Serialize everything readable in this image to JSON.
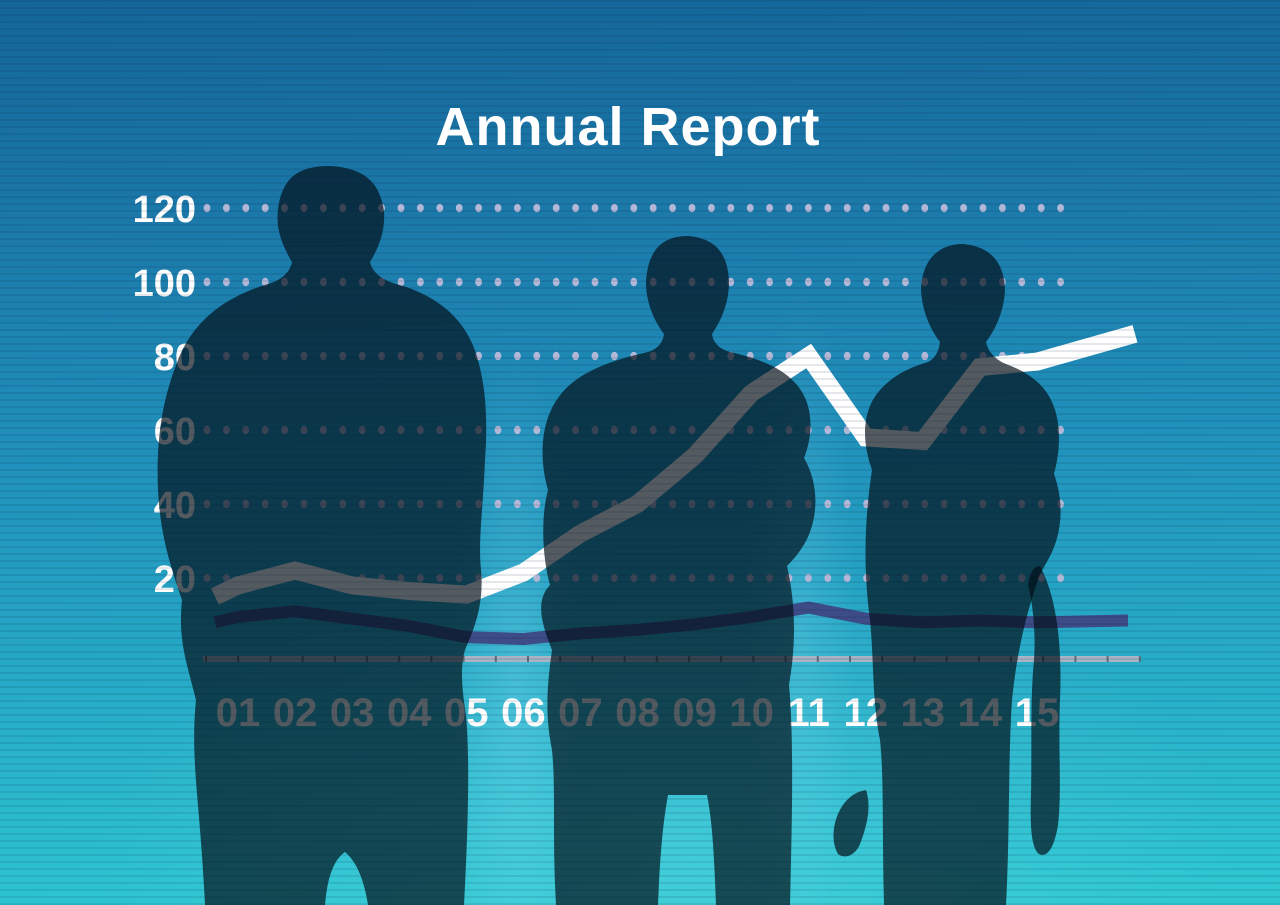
{
  "title": "Annual Report",
  "chart_data": {
    "type": "line",
    "title": "Annual Report",
    "categories": [
      "01",
      "02",
      "03",
      "04",
      "05",
      "06",
      "07",
      "08",
      "09",
      "10",
      "11",
      "12",
      "13",
      "14",
      "15"
    ],
    "y_ticks": [
      20,
      40,
      60,
      80,
      100,
      120
    ],
    "ylim": [
      0,
      130
    ],
    "grid": "dotted-horizontal",
    "legend_position": "none",
    "series": [
      {
        "name": "primary-trend",
        "color": "#ffffff",
        "dimmed_color": "#7d7a73",
        "values": [
          18,
          22,
          18,
          16.5,
          15.5,
          21.5,
          32,
          40,
          53,
          70,
          80,
          58,
          57,
          77,
          78.5
        ],
        "lead_in_value": 15,
        "lead_out_value": 86
      },
      {
        "name": "secondary-trend",
        "color": "#3d4c87",
        "dimmed_color": "#151b33",
        "values": [
          9.5,
          11,
          9,
          7,
          4,
          3.5,
          5,
          6,
          7.5,
          9.5,
          12,
          9,
          8,
          8.5,
          8
        ],
        "lead_in_value": 8,
        "lead_out_value": 8.5
      }
    ]
  },
  "scene": {
    "figures": [
      "businessman silhouette, back view",
      "businessman silhouette, arms crossed",
      "businesswoman silhouette, long hair"
    ]
  },
  "colors": {
    "background_top": "#14659a",
    "background_bottom": "#2fc9d2",
    "silhouette": "#020d16",
    "grid_dot": "#b3b8d8",
    "axis_label": "#ffffff",
    "x_label": "#ffffff",
    "ruler": "#a9b4c4",
    "ruler_tick": "#626c79",
    "title": "#ffffff"
  }
}
